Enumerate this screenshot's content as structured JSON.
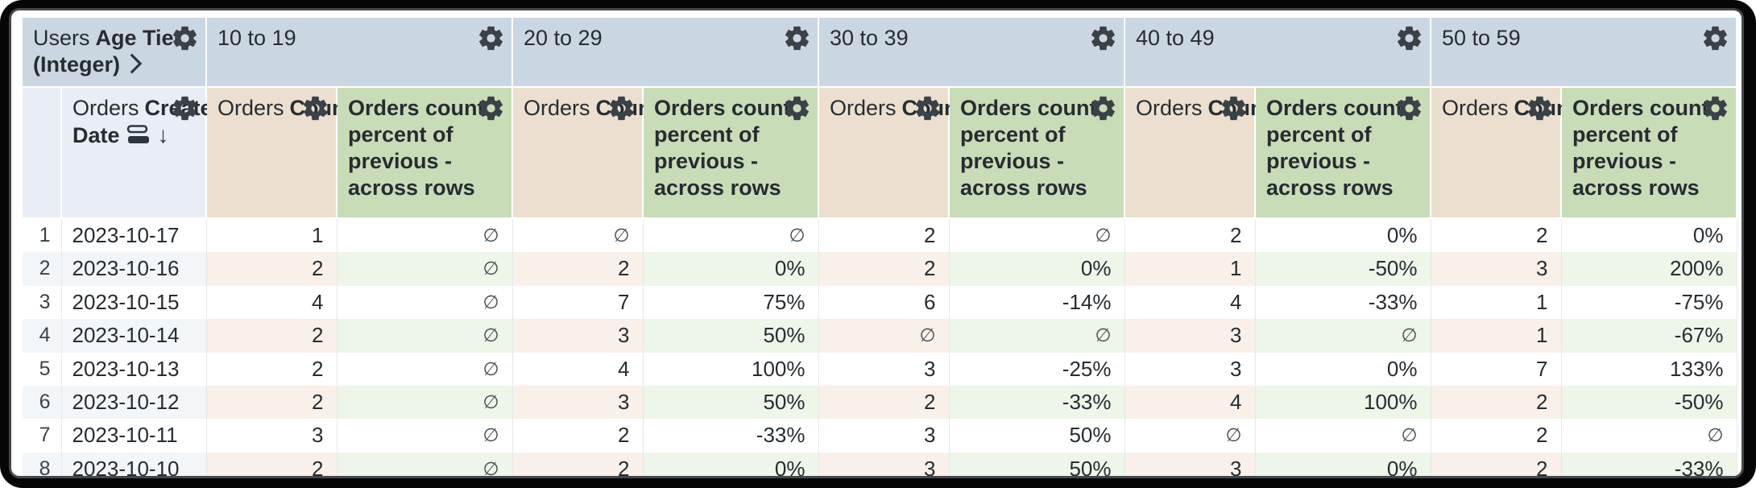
{
  "colors": {
    "frame": "#060606",
    "pivot_header_bg": "#cad7e3",
    "row_header_bg": "#e9eef6",
    "count_header_bg": "#ecdfcf",
    "percent_header_bg": "#c9dcb8",
    "stripe_default": "#f3f6f9",
    "stripe_count": "#f9f0ea",
    "stripe_percent": "#eef5e9",
    "text": "#262c31"
  },
  "icons": {
    "settings": "gear-icon",
    "sort_descending": "arrow-down-icon",
    "pivot_expand": "chevron-right-icon",
    "date_fill": "bars-icon",
    "null_glyph": "∅"
  },
  "pivot_header": {
    "dimension_view": "Users",
    "dimension_field": "Age Tier (Integer)",
    "groups": [
      "10 to 19",
      "20 to 29",
      "30 to 39",
      "40 to 49",
      "50 to 59"
    ]
  },
  "column_header": {
    "row_view": "Orders",
    "row_field": "Created Date",
    "sort_arrow": "↓",
    "measure_view": "Orders",
    "measure_field": "Count",
    "calc_field": "Orders count percent of previous - across rows"
  },
  "rows": [
    {
      "n": "1",
      "date": "2023-10-17",
      "values": [
        "1",
        "∅",
        "∅",
        "∅",
        "2",
        "∅",
        "2",
        "0%",
        "2",
        "0%"
      ]
    },
    {
      "n": "2",
      "date": "2023-10-16",
      "values": [
        "2",
        "∅",
        "2",
        "0%",
        "2",
        "0%",
        "1",
        "-50%",
        "3",
        "200%"
      ]
    },
    {
      "n": "3",
      "date": "2023-10-15",
      "values": [
        "4",
        "∅",
        "7",
        "75%",
        "6",
        "-14%",
        "4",
        "-33%",
        "1",
        "-75%"
      ]
    },
    {
      "n": "4",
      "date": "2023-10-14",
      "values": [
        "2",
        "∅",
        "3",
        "50%",
        "∅",
        "∅",
        "3",
        "∅",
        "1",
        "-67%"
      ]
    },
    {
      "n": "5",
      "date": "2023-10-13",
      "values": [
        "2",
        "∅",
        "4",
        "100%",
        "3",
        "-25%",
        "3",
        "0%",
        "7",
        "133%"
      ]
    },
    {
      "n": "6",
      "date": "2023-10-12",
      "values": [
        "2",
        "∅",
        "3",
        "50%",
        "2",
        "-33%",
        "4",
        "100%",
        "2",
        "-50%"
      ]
    },
    {
      "n": "7",
      "date": "2023-10-11",
      "values": [
        "3",
        "∅",
        "2",
        "-33%",
        "3",
        "50%",
        "∅",
        "∅",
        "2",
        "∅"
      ]
    },
    {
      "n": "8",
      "date": "2023-10-10",
      "values": [
        "2",
        "∅",
        "2",
        "0%",
        "3",
        "50%",
        "3",
        "0%",
        "2",
        "-33%"
      ]
    }
  ]
}
